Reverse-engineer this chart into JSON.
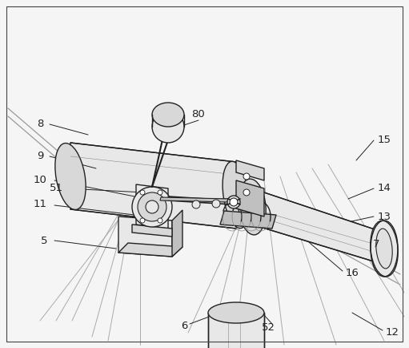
{
  "bg_color": "#ffffff",
  "lc": "#222222",
  "gc": "#888888",
  "shade1": "#d8d8d8",
  "shade2": "#e8e8e8",
  "shade3": "#c0c0c0",
  "shade4": "#b8b8b8",
  "figure_width": 5.11,
  "figure_height": 4.34,
  "dpi": 100
}
